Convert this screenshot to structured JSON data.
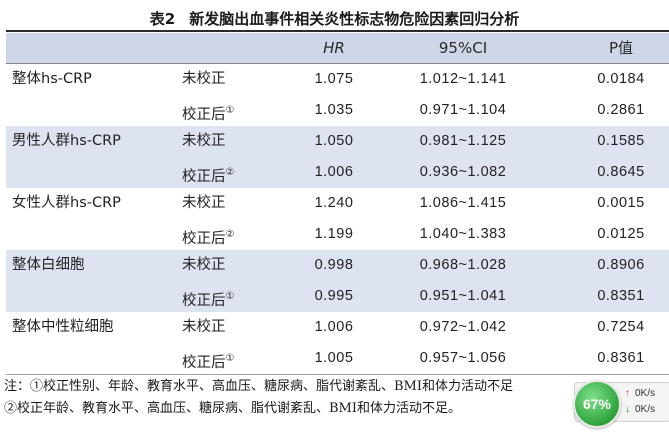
{
  "title": {
    "number": "表2",
    "text": "新发脑出血事件相关炎性标志物危险因素回归分析"
  },
  "header": {
    "hr": "HR",
    "ci": "95%CI",
    "p": "P值"
  },
  "groups": [
    {
      "name": "整体hs-CRP",
      "rows": [
        {
          "cond": "未校正",
          "mark": "",
          "hr": "1.075",
          "ci": "1.012~1.141",
          "p": "0.0184"
        },
        {
          "cond": "校正后",
          "mark": "①",
          "hr": "1.035",
          "ci": "0.971~1.104",
          "p": "0.2861"
        }
      ]
    },
    {
      "name": "男性人群hs-CRP",
      "rows": [
        {
          "cond": "未校正",
          "mark": "",
          "hr": "1.050",
          "ci": "0.981~1.125",
          "p": "0.1585"
        },
        {
          "cond": "校正后",
          "mark": "②",
          "hr": "1.006",
          "ci": "0.936~1.082",
          "p": "0.8645"
        }
      ]
    },
    {
      "name": "女性人群hs-CRP",
      "rows": [
        {
          "cond": "未校正",
          "mark": "",
          "hr": "1.240",
          "ci": "1.086~1.415",
          "p": "0.0015"
        },
        {
          "cond": "校正后",
          "mark": "②",
          "hr": "1.199",
          "ci": "1.040~1.383",
          "p": "0.0125"
        }
      ]
    },
    {
      "name": "整体白细胞",
      "rows": [
        {
          "cond": "未校正",
          "mark": "",
          "hr": "0.998",
          "ci": "0.968~1.028",
          "p": "0.8906"
        },
        {
          "cond": "校正后",
          "mark": "①",
          "hr": "0.995",
          "ci": "0.951~1.041",
          "p": "0.8351"
        }
      ]
    },
    {
      "name": "整体中性粒细胞",
      "rows": [
        {
          "cond": "未校正",
          "mark": "",
          "hr": "1.006",
          "ci": "0.972~1.042",
          "p": "0.7254"
        },
        {
          "cond": "校正后",
          "mark": "①",
          "hr": "1.005",
          "ci": "0.957~1.056",
          "p": "0.8361"
        }
      ]
    }
  ],
  "notes": {
    "line1": "注：①校正性别、年龄、教育水平、高血压、糖尿病、脂代谢紊乱、BMI和体力活动不足",
    "line2": "②校正年龄、教育水平、高血压、糖尿病、脂代谢紊乱、BMI和体力活动不足。"
  },
  "widget": {
    "percent": "67%",
    "upload": "0K/s",
    "download": "0K/s"
  },
  "colors": {
    "header_bg": "#cfd6e8",
    "band_shade": "#dde3f0",
    "badge_green": "#2ea33c"
  }
}
